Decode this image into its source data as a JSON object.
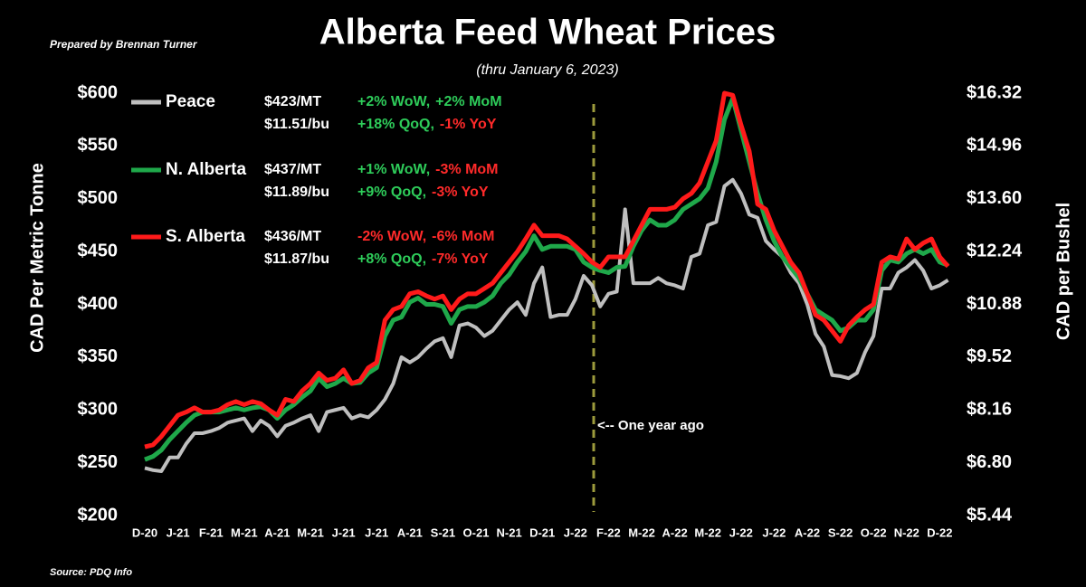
{
  "chart_data": {
    "type": "line",
    "title": "Alberta Feed Wheat Prices",
    "subtitle": "(thru January 6, 2023)",
    "credit": "Prepared by Brennan Turner",
    "source": "Source: PDQ Info",
    "y_label": "CAD Per Metric Tonne",
    "y2_label": "CAD per Bushel",
    "annotation": "<-- One year ago",
    "ylim": [
      200,
      600
    ],
    "yticks": [
      {
        "value": 200,
        "label": "$200"
      },
      {
        "value": 250,
        "label": "$250"
      },
      {
        "value": 300,
        "label": "$300"
      },
      {
        "value": 350,
        "label": "$350"
      },
      {
        "value": 400,
        "label": "$400"
      },
      {
        "value": 450,
        "label": "$450"
      },
      {
        "value": 500,
        "label": "$500"
      },
      {
        "value": 550,
        "label": "$550"
      },
      {
        "value": 600,
        "label": "$600"
      }
    ],
    "y2lim": [
      5.44,
      16.32
    ],
    "y2ticks": [
      {
        "value": 5.44,
        "label": "$5.44"
      },
      {
        "value": 6.8,
        "label": "$6.80"
      },
      {
        "value": 8.16,
        "label": "$8.16"
      },
      {
        "value": 9.52,
        "label": "$9.52"
      },
      {
        "value": 10.88,
        "label": "$10.88"
      },
      {
        "value": 12.24,
        "label": "$12.24"
      },
      {
        "value": 13.6,
        "label": "$13.60"
      },
      {
        "value": 14.96,
        "label": "$14.96"
      },
      {
        "value": 16.32,
        "label": "$16.32"
      }
    ],
    "grid": false,
    "categories": [
      "D-20",
      null,
      null,
      null,
      "J-21",
      null,
      null,
      null,
      "F-21",
      null,
      null,
      null,
      "M-21",
      null,
      null,
      null,
      "A-21",
      null,
      null,
      null,
      "M-21",
      null,
      null,
      null,
      "J-21",
      null,
      null,
      null,
      "J-21",
      null,
      null,
      null,
      "A-21",
      null,
      null,
      null,
      "S-21",
      null,
      null,
      null,
      "O-21",
      null,
      null,
      null,
      "N-21",
      null,
      null,
      null,
      "D-21",
      null,
      null,
      null,
      "J-22",
      null,
      null,
      null,
      "F-22",
      null,
      null,
      null,
      "M-22",
      null,
      null,
      null,
      "A-22",
      null,
      null,
      null,
      "M-22",
      null,
      null,
      null,
      "J-22",
      null,
      null,
      null,
      "J-22",
      null,
      null,
      null,
      "A-22",
      null,
      null,
      null,
      "S-22",
      null,
      null,
      null,
      "O-22",
      null,
      null,
      null,
      "N-22",
      null,
      null,
      null,
      "D-22",
      null
    ],
    "series": [
      {
        "name": "Peace",
        "color": "#bfbfbf",
        "stats": [
          {
            "price": "$423/MT",
            "changes": [
              "+2% WoW,",
              "+2% MoM"
            ]
          },
          {
            "price": "$11.51/bu",
            "changes": [
              "+18% QoQ,",
              "-1% YoY"
            ]
          }
        ],
        "values": [
          245,
          243,
          242,
          255,
          255,
          268,
          278,
          278,
          280,
          283,
          288,
          290,
          292,
          280,
          290,
          285,
          275,
          285,
          288,
          292,
          295,
          280,
          298,
          300,
          302,
          292,
          295,
          293,
          300,
          310,
          325,
          350,
          345,
          350,
          358,
          365,
          368,
          350,
          380,
          382,
          378,
          370,
          375,
          385,
          395,
          402,
          390,
          420,
          435,
          388,
          390,
          390,
          405,
          427,
          418,
          398,
          410,
          412,
          490,
          420,
          420,
          420,
          425,
          420,
          418,
          415,
          445,
          448,
          475,
          478,
          512,
          518,
          505,
          485,
          482,
          460,
          452,
          445,
          430,
          420,
          400,
          372,
          360,
          333,
          332,
          330,
          335,
          355,
          370,
          415,
          415,
          430,
          435,
          442,
          432,
          415,
          418,
          423
        ]
      },
      {
        "name": "N. Alberta",
        "color": "#1fa84a",
        "stats": [
          {
            "price": "$437/MT",
            "changes": [
              "+1% WoW,",
              "-3% MoM"
            ]
          },
          {
            "price": "$11.89/bu",
            "changes": [
              "+9% QoQ,",
              "-3% YoY"
            ]
          }
        ],
        "values": [
          253,
          256,
          262,
          272,
          280,
          288,
          295,
          298,
          298,
          298,
          300,
          302,
          300,
          302,
          303,
          300,
          292,
          300,
          305,
          312,
          318,
          330,
          322,
          325,
          330,
          325,
          326,
          335,
          340,
          370,
          385,
          388,
          402,
          406,
          400,
          400,
          398,
          382,
          395,
          398,
          398,
          402,
          408,
          420,
          428,
          440,
          450,
          465,
          452,
          455,
          455,
          455,
          452,
          440,
          435,
          432,
          430,
          435,
          436,
          455,
          470,
          480,
          475,
          475,
          480,
          490,
          495,
          500,
          510,
          535,
          575,
          595,
          565,
          535,
          505,
          480,
          460,
          445,
          435,
          425,
          410,
          395,
          390,
          385,
          375,
          378,
          385,
          385,
          395,
          432,
          442,
          440,
          448,
          452,
          448,
          452,
          440,
          437
        ]
      },
      {
        "name": "S. Alberta",
        "color": "#ff1a1a",
        "stats": [
          {
            "price": "$436/MT",
            "changes": [
              "-2% WoW,",
              "-6% MoM"
            ]
          },
          {
            "price": "$11.87/bu",
            "changes": [
              "+8% QoQ,",
              "-7% YoY"
            ]
          }
        ],
        "values": [
          265,
          267,
          275,
          285,
          295,
          298,
          302,
          298,
          298,
          300,
          305,
          308,
          305,
          308,
          306,
          300,
          295,
          310,
          308,
          318,
          325,
          335,
          328,
          330,
          338,
          325,
          328,
          340,
          345,
          385,
          395,
          398,
          410,
          412,
          408,
          405,
          408,
          395,
          405,
          410,
          410,
          415,
          420,
          430,
          440,
          450,
          462,
          475,
          465,
          465,
          465,
          462,
          455,
          448,
          440,
          435,
          445,
          445,
          445,
          460,
          475,
          490,
          490,
          490,
          492,
          500,
          505,
          515,
          535,
          555,
          600,
          598,
          570,
          545,
          495,
          490,
          470,
          455,
          440,
          430,
          410,
          390,
          385,
          375,
          365,
          380,
          388,
          395,
          400,
          440,
          445,
          443,
          462,
          452,
          458,
          462,
          445,
          436
        ]
      }
    ]
  }
}
